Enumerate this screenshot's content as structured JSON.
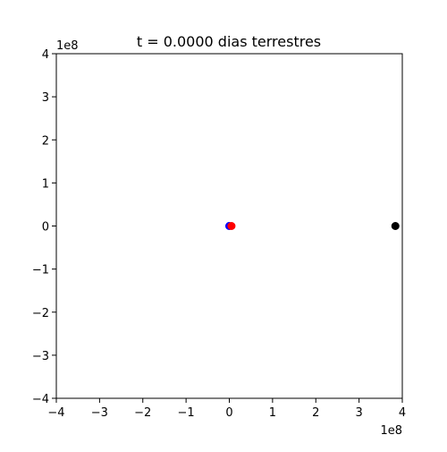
{
  "chart_data": {
    "type": "scatter",
    "title": "t = 0.0000 dias terrestres",
    "xlabel": "",
    "ylabel": "",
    "xlim": [
      -4,
      4
    ],
    "ylim": [
      -4,
      4
    ],
    "x_scale_label": "1e8",
    "y_scale_label": "1e8",
    "x_ticks": [
      -4,
      -3,
      -2,
      -1,
      0,
      1,
      2,
      3,
      4
    ],
    "y_ticks": [
      -4,
      -3,
      -2,
      -1,
      0,
      1,
      2,
      3,
      4
    ],
    "x_tick_labels": [
      "−4",
      "−3",
      "−2",
      "−1",
      "0",
      "1",
      "2",
      "3",
      "4"
    ],
    "y_tick_labels": [
      "−4",
      "−3",
      "−2",
      "−1",
      "0",
      "1",
      "2",
      "3",
      "4"
    ],
    "grid": false,
    "points": [
      {
        "x": 0.0,
        "y": 0.0,
        "color": "#0000ff"
      },
      {
        "x": 0.05,
        "y": 0.0,
        "color": "#ff0000"
      },
      {
        "x": 3.84,
        "y": 0.0,
        "color": "#000000"
      }
    ]
  }
}
